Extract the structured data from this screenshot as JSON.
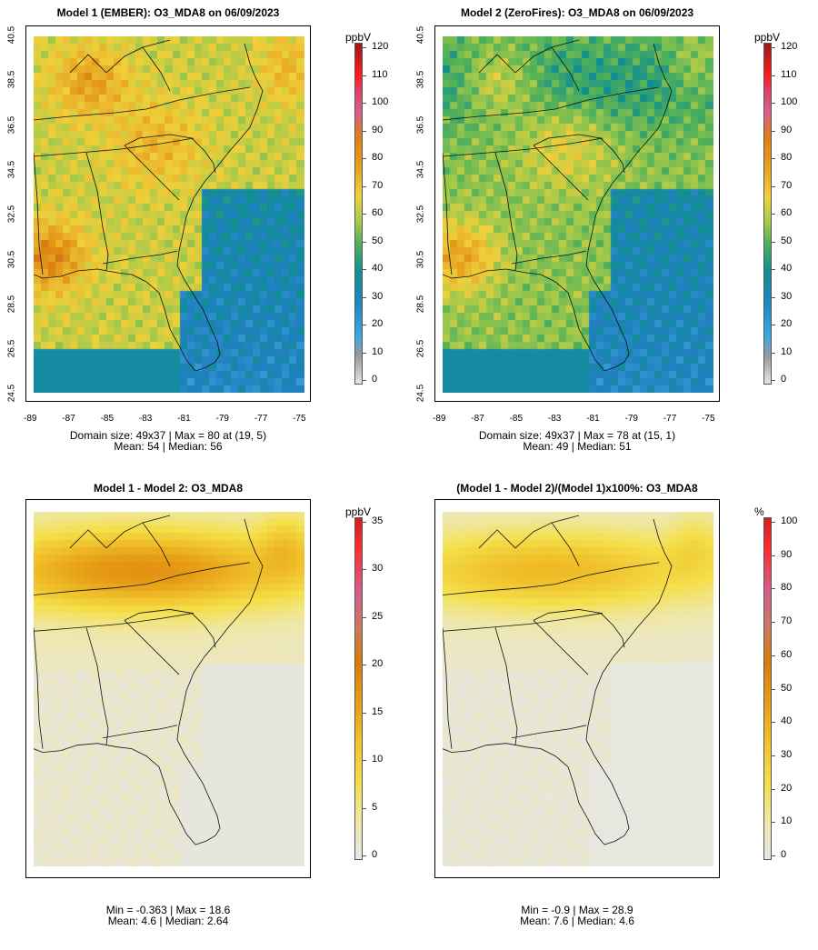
{
  "panels": [
    {
      "title": "Model 1 (EMBER): O3_MDA8 on 06/09/2023",
      "stats_line1": "Domain size: 49x37 | Max = 80 at (19, 5)",
      "stats_line2": "Mean: 54 |  Median: 56",
      "colorbar": {
        "unit": "ppbV",
        "ticks": [
          "120",
          "110",
          "100",
          "90",
          "80",
          "70",
          "60",
          "50",
          "40",
          "30",
          "20",
          "10",
          "0"
        ]
      },
      "variant": "model1"
    },
    {
      "title": "Model 2 (ZeroFires): O3_MDA8 on 06/09/2023",
      "stats_line1": "Domain size: 49x37 | Max = 78 at (15, 1)",
      "stats_line2": "Mean: 49 |  Median: 51",
      "colorbar": {
        "unit": "ppbV",
        "ticks": [
          "120",
          "110",
          "100",
          "90",
          "80",
          "70",
          "60",
          "50",
          "40",
          "30",
          "20",
          "10",
          "0"
        ]
      },
      "variant": "model2"
    },
    {
      "title": "Model 1 - Model 2: O3_MDA8",
      "stats_line1": "Min = -0.363 | Max = 18.6",
      "stats_line2": "Mean: 4.6 |  Median: 2.64",
      "colorbar": {
        "unit": "ppbV",
        "ticks": [
          "35",
          "30",
          "25",
          "20",
          "15",
          "10",
          "5",
          "0"
        ]
      },
      "variant": "diff"
    },
    {
      "title": "(Model 1 - Model 2)/(Model 1)x100%: O3_MDA8",
      "stats_line1": "Min = -0.9 | Max = 28.9",
      "stats_line2": "Mean: 7.6 |  Median: 4.6",
      "colorbar": {
        "unit": "%",
        "ticks": [
          "100",
          "90",
          "80",
          "70",
          "60",
          "50",
          "40",
          "30",
          "20",
          "10",
          "0"
        ]
      },
      "variant": "pct"
    }
  ],
  "axes": {
    "y_ticks": [
      "40.5",
      "38.5",
      "36.5",
      "34.5",
      "32.5",
      "30.5",
      "28.5",
      "26.5",
      "24.5"
    ],
    "x_ticks": [
      "-89",
      "-87",
      "-85",
      "-83",
      "-81",
      "-79",
      "-77",
      "-75"
    ]
  },
  "colors": {
    "ozone_scale": [
      "#e6e6e6",
      "#9e9e9e",
      "#3aa0d8",
      "#1f80bf",
      "#0f8f8f",
      "#4fb05a",
      "#a3c94a",
      "#f0d03a",
      "#e9b02a",
      "#e08a10",
      "#c8661c",
      "#d12b2b",
      "#ff1a1a",
      "#c0447a"
    ],
    "diff_scale": [
      "#e6e6e6",
      "#efe7a8",
      "#f4e04a",
      "#f0c02a",
      "#e59a14",
      "#d97a0d",
      "#c96e4c",
      "#d2597f",
      "#ff2a2a"
    ]
  }
}
